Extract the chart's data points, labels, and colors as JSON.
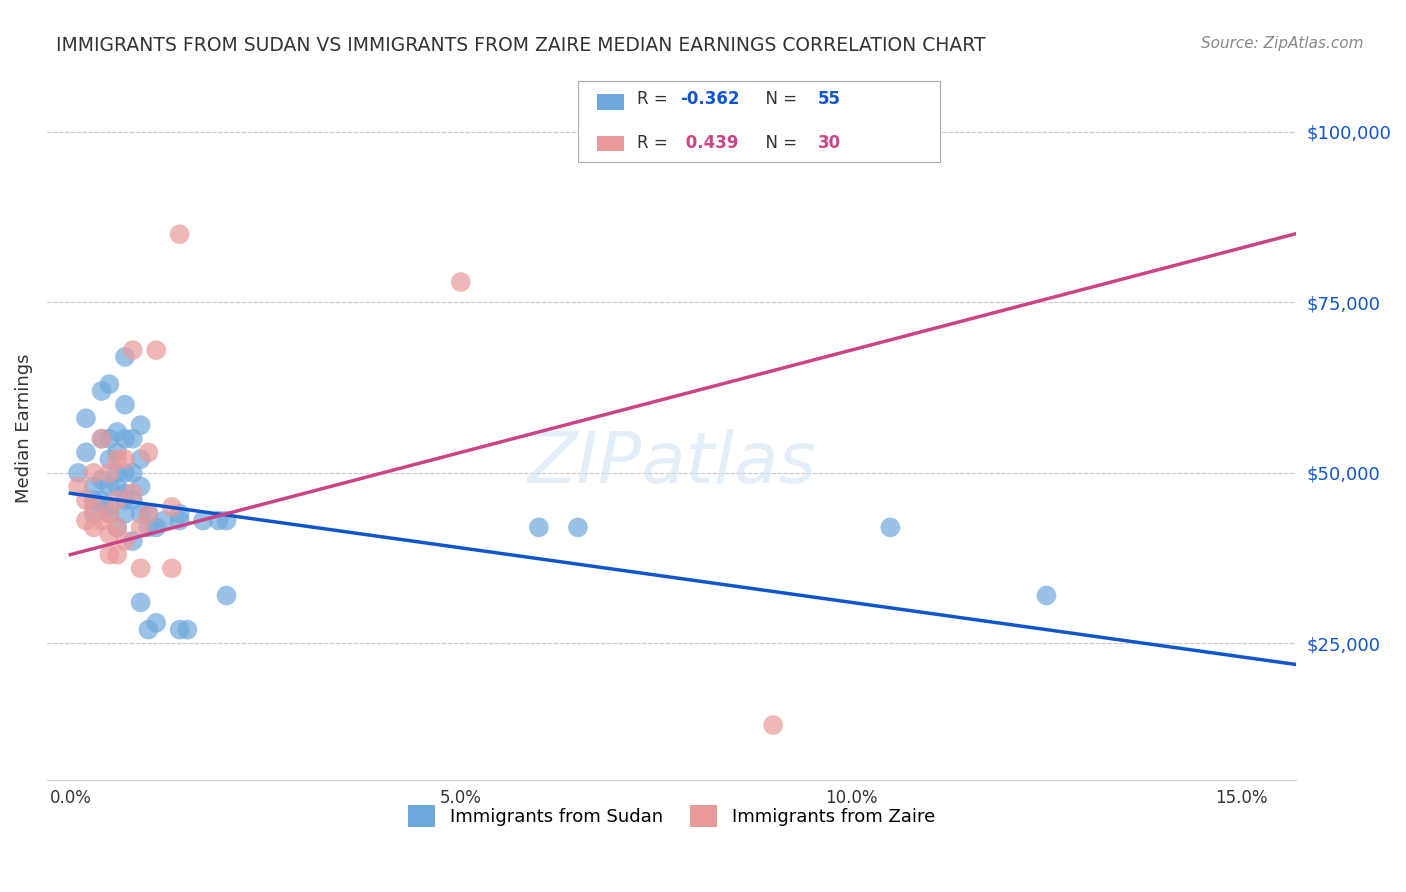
{
  "title": "IMMIGRANTS FROM SUDAN VS IMMIGRANTS FROM ZAIRE MEDIAN EARNINGS CORRELATION CHART",
  "source": "Source: ZipAtlas.com",
  "ylabel": "Median Earnings",
  "xlabel_ticks": [
    "0.0%",
    "5.0%",
    "10.0%",
    "15.0%"
  ],
  "xlabel_vals": [
    0.0,
    0.05,
    0.1,
    0.15
  ],
  "ytick_labels": [
    "$25,000",
    "$50,000",
    "$75,000",
    "$100,000"
  ],
  "ytick_vals": [
    25000,
    50000,
    75000,
    100000
  ],
  "xlim": [
    -0.003,
    0.157
  ],
  "ylim": [
    5000,
    108000
  ],
  "legend_sudan": "R = -0.362   N = 55",
  "legend_zaire": "R =  0.439   N = 30",
  "sudan_color": "#6fa8dc",
  "zaire_color": "#ea9999",
  "sudan_line_color": "#1155cc",
  "zaire_line_color": "#cc4488",
  "zaire_dashed_color": "#f4b8c8",
  "watermark": "ZIPatlas",
  "sudan_points_x": [
    0.001,
    0.002,
    0.002,
    0.003,
    0.003,
    0.003,
    0.004,
    0.004,
    0.004,
    0.004,
    0.005,
    0.005,
    0.005,
    0.005,
    0.005,
    0.005,
    0.006,
    0.006,
    0.006,
    0.006,
    0.006,
    0.007,
    0.007,
    0.007,
    0.007,
    0.007,
    0.007,
    0.007,
    0.008,
    0.008,
    0.008,
    0.008,
    0.009,
    0.009,
    0.009,
    0.009,
    0.009,
    0.01,
    0.01,
    0.01,
    0.011,
    0.011,
    0.012,
    0.014,
    0.014,
    0.014,
    0.015,
    0.017,
    0.019,
    0.02,
    0.02,
    0.06,
    0.065,
    0.105,
    0.125
  ],
  "sudan_points_y": [
    50000,
    53000,
    58000,
    48000,
    46000,
    44000,
    62000,
    55000,
    49000,
    46000,
    63000,
    55000,
    52000,
    48000,
    45000,
    44000,
    56000,
    53000,
    50000,
    48000,
    42000,
    67000,
    60000,
    55000,
    50000,
    47000,
    46000,
    44000,
    55000,
    50000,
    46000,
    40000,
    57000,
    52000,
    48000,
    44000,
    31000,
    44000,
    42000,
    27000,
    42000,
    28000,
    43000,
    44000,
    43000,
    27000,
    27000,
    43000,
    43000,
    43000,
    32000,
    42000,
    42000,
    42000,
    32000
  ],
  "zaire_points_x": [
    0.001,
    0.002,
    0.002,
    0.003,
    0.003,
    0.003,
    0.004,
    0.004,
    0.005,
    0.005,
    0.005,
    0.005,
    0.006,
    0.006,
    0.006,
    0.006,
    0.007,
    0.007,
    0.008,
    0.008,
    0.009,
    0.009,
    0.01,
    0.01,
    0.011,
    0.013,
    0.013,
    0.014,
    0.05,
    0.09
  ],
  "zaire_points_y": [
    48000,
    46000,
    43000,
    50000,
    45000,
    42000,
    55000,
    43000,
    50000,
    44000,
    41000,
    38000,
    52000,
    46000,
    42000,
    38000,
    52000,
    40000,
    68000,
    47000,
    42000,
    36000,
    53000,
    44000,
    68000,
    45000,
    36000,
    85000,
    78000,
    13000
  ]
}
